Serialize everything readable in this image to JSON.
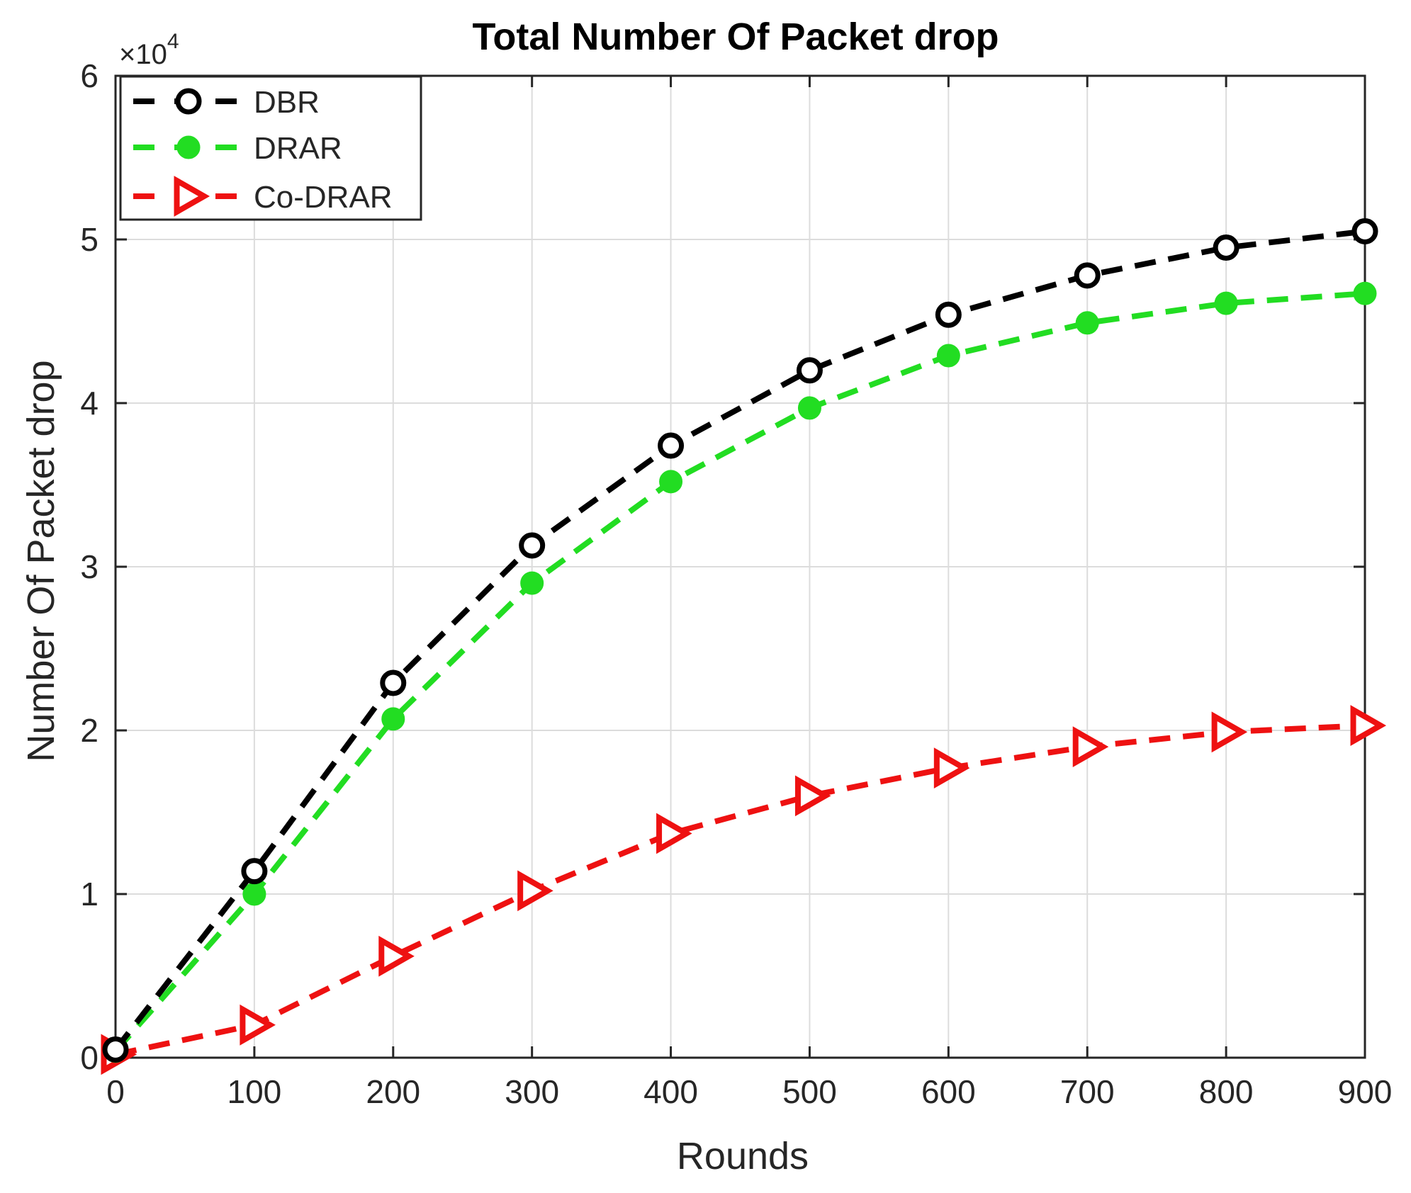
{
  "chart_data": {
    "type": "line",
    "title": "Total Number Of Packet drop",
    "xlabel": "Rounds",
    "ylabel": "Number Of Packet drop",
    "y_multiplier_label": "×10",
    "y_multiplier_exponent": "4",
    "x": [
      0,
      100,
      200,
      300,
      400,
      500,
      600,
      700,
      800,
      900
    ],
    "xlim": [
      0,
      900
    ],
    "ylim": [
      0,
      6
    ],
    "xticks": [
      "0",
      "100",
      "200",
      "300",
      "400",
      "500",
      "600",
      "700",
      "800",
      "900"
    ],
    "yticks": [
      "0",
      "1",
      "2",
      "3",
      "4",
      "5",
      "6"
    ],
    "grid": true,
    "legend_position": "top-left",
    "series": [
      {
        "name": "DBR",
        "color": "#000000",
        "marker": "circle-open",
        "values": [
          0.05,
          1.14,
          2.29,
          3.13,
          3.74,
          4.2,
          4.54,
          4.78,
          4.95,
          5.05
        ]
      },
      {
        "name": "DRAR",
        "color": "#22dd22",
        "marker": "circle-filled",
        "values": [
          0.04,
          1.0,
          2.07,
          2.9,
          3.52,
          3.97,
          4.29,
          4.49,
          4.61,
          4.67
        ]
      },
      {
        "name": "Co-DRAR",
        "color": "#ee1111",
        "marker": "triangle-right",
        "values": [
          0.02,
          0.2,
          0.62,
          1.02,
          1.37,
          1.6,
          1.77,
          1.9,
          1.99,
          2.03
        ]
      }
    ]
  }
}
